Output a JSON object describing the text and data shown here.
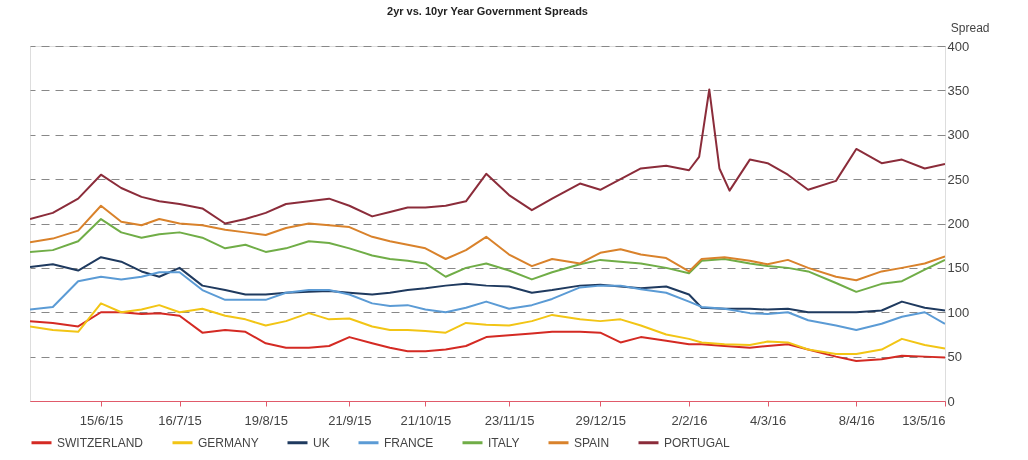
{
  "chart_data": {
    "type": "line",
    "title": "2yr vs. 10yr Year Government Spreads",
    "ylabel": "Spread",
    "x": [
      "2015-05-18",
      "2015-05-27",
      "2015-06-06",
      "2015-06-15",
      "2015-06-23",
      "2015-07-01",
      "2015-07-08",
      "2015-07-16",
      "2015-07-25",
      "2015-08-03",
      "2015-08-11",
      "2015-08-19",
      "2015-08-27",
      "2015-09-05",
      "2015-09-13",
      "2015-09-21",
      "2015-09-30",
      "2015-10-07",
      "2015-10-14",
      "2015-10-21",
      "2015-10-29",
      "2015-11-06",
      "2015-11-14",
      "2015-11-23",
      "2015-12-02",
      "2015-12-10",
      "2015-12-21",
      "2015-12-29",
      "2016-01-06",
      "2016-01-14",
      "2016-01-24",
      "2016-02-02",
      "2016-02-07",
      "2016-02-16",
      "2016-02-26",
      "2016-03-04",
      "2016-03-12",
      "2016-03-20",
      "2016-03-31",
      "2016-04-08",
      "2016-04-18",
      "2016-04-26",
      "2016-05-05",
      "2016-05-13"
    ],
    "series": [
      {
        "name": "SWITZERLAND",
        "color": "#d42a23",
        "values": [
          90,
          88,
          84,
          100,
          100,
          98,
          99,
          96,
          77,
          80,
          78,
          65,
          60,
          60,
          62,
          72,
          65,
          60,
          56,
          56,
          58,
          62,
          72,
          74,
          76,
          78,
          78,
          77,
          66,
          72,
          68,
          64,
          64,
          62,
          60,
          62,
          64,
          58,
          50,
          45,
          47,
          51,
          50,
          49
        ]
      },
      {
        "name": "GERMANY",
        "color": "#f2c515",
        "values": [
          84,
          80,
          78,
          110,
          100,
          103,
          108,
          100,
          104,
          96,
          92,
          85,
          90,
          99,
          92,
          93,
          84,
          80,
          80,
          79,
          77,
          88,
          86,
          85,
          90,
          97,
          92,
          90,
          92,
          85,
          75,
          70,
          66,
          64,
          63,
          67,
          66,
          58,
          53,
          53,
          58,
          70,
          63,
          59
        ]
      },
      {
        "name": "UK",
        "color": "#1f3a5f",
        "values": [
          151,
          154,
          147,
          162,
          157,
          146,
          140,
          150,
          130,
          125,
          120,
          120,
          122,
          123,
          124,
          122,
          120,
          122,
          125,
          127,
          130,
          132,
          130,
          129,
          122,
          125,
          130,
          131,
          129,
          127,
          129,
          120,
          105,
          104,
          104,
          103,
          104,
          100,
          100,
          100,
          102,
          112,
          105,
          102
        ]
      },
      {
        "name": "FRANCE",
        "color": "#5b9bd5",
        "values": [
          103,
          106,
          135,
          140,
          137,
          140,
          145,
          145,
          125,
          114,
          114,
          114,
          122,
          125,
          125,
          120,
          110,
          107,
          108,
          103,
          100,
          105,
          112,
          104,
          108,
          115,
          128,
          130,
          130,
          126,
          122,
          112,
          106,
          104,
          99,
          98,
          100,
          91,
          85,
          80,
          87,
          95,
          100,
          87
        ]
      },
      {
        "name": "ITALY",
        "color": "#70ad47",
        "values": [
          168,
          170,
          180,
          205,
          190,
          184,
          188,
          190,
          184,
          172,
          176,
          168,
          172,
          180,
          178,
          172,
          164,
          160,
          158,
          155,
          140,
          150,
          155,
          147,
          137,
          145,
          154,
          159,
          157,
          155,
          150,
          144,
          158,
          160,
          155,
          152,
          150,
          146,
          133,
          123,
          132,
          135,
          148,
          159
        ]
      },
      {
        "name": "SPAIN",
        "color": "#d9822b",
        "values": [
          179,
          183,
          192,
          220,
          202,
          198,
          205,
          200,
          198,
          193,
          190,
          187,
          195,
          200,
          198,
          196,
          185,
          180,
          176,
          172,
          160,
          170,
          185,
          165,
          152,
          160,
          155,
          167,
          171,
          165,
          161,
          146,
          160,
          162,
          158,
          154,
          159,
          150,
          140,
          136,
          146,
          150,
          155,
          163
        ]
      },
      {
        "name": "PORTUGAL",
        "color": "#8b2c3a",
        "x": [
          "2015-05-18",
          "2015-05-27",
          "2015-06-06",
          "2015-06-15",
          "2015-06-23",
          "2015-07-01",
          "2015-07-08",
          "2015-07-16",
          "2015-07-25",
          "2015-08-03",
          "2015-08-11",
          "2015-08-19",
          "2015-08-27",
          "2015-09-05",
          "2015-09-13",
          "2015-09-21",
          "2015-09-30",
          "2015-10-07",
          "2015-10-14",
          "2015-10-21",
          "2015-10-29",
          "2015-11-06",
          "2015-11-14",
          "2015-11-23",
          "2015-12-02",
          "2015-12-10",
          "2015-12-21",
          "2015-12-29",
          "2016-01-06",
          "2016-01-14",
          "2016-01-24",
          "2016-02-02",
          "2016-02-06",
          "2016-02-10",
          "2016-02-14",
          "2016-02-18",
          "2016-02-26",
          "2016-03-04",
          "2016-03-12",
          "2016-03-20",
          "2016-03-31",
          "2016-04-08",
          "2016-04-18",
          "2016-04-26",
          "2016-05-05",
          "2016-05-13"
        ],
        "values": [
          205,
          212,
          228,
          255,
          240,
          230,
          225,
          222,
          217,
          200,
          205,
          212,
          222,
          225,
          228,
          220,
          208,
          213,
          218,
          218,
          220,
          225,
          256,
          232,
          215,
          228,
          245,
          238,
          250,
          262,
          265,
          260,
          275,
          351,
          262,
          237,
          272,
          268,
          255,
          238,
          248,
          284,
          268,
          272,
          262,
          267
        ]
      }
    ],
    "xlim": [
      "2015-05-18",
      "2016-05-13"
    ],
    "xticks": [
      {
        "value": "2015-06-15",
        "label": "15/6/15"
      },
      {
        "value": "2015-07-16",
        "label": "16/7/15"
      },
      {
        "value": "2015-08-19",
        "label": "19/8/15"
      },
      {
        "value": "2015-09-21",
        "label": "21/9/15"
      },
      {
        "value": "2015-10-21",
        "label": "21/10/15"
      },
      {
        "value": "2015-11-23",
        "label": "23/11/15"
      },
      {
        "value": "2015-12-29",
        "label": "29/12/15"
      },
      {
        "value": "2016-02-02",
        "label": "2/2/16"
      },
      {
        "value": "2016-03-04",
        "label": "4/3/16"
      },
      {
        "value": "2016-04-08",
        "label": "8/4/16"
      },
      {
        "value": "2016-05-13",
        "label": "13/5/16"
      }
    ],
    "ylim": [
      0,
      400
    ],
    "yticks": [
      0,
      50,
      100,
      150,
      200,
      250,
      300,
      350,
      400
    ],
    "grid": "y",
    "legend": "bottom",
    "line_style": "solid"
  }
}
